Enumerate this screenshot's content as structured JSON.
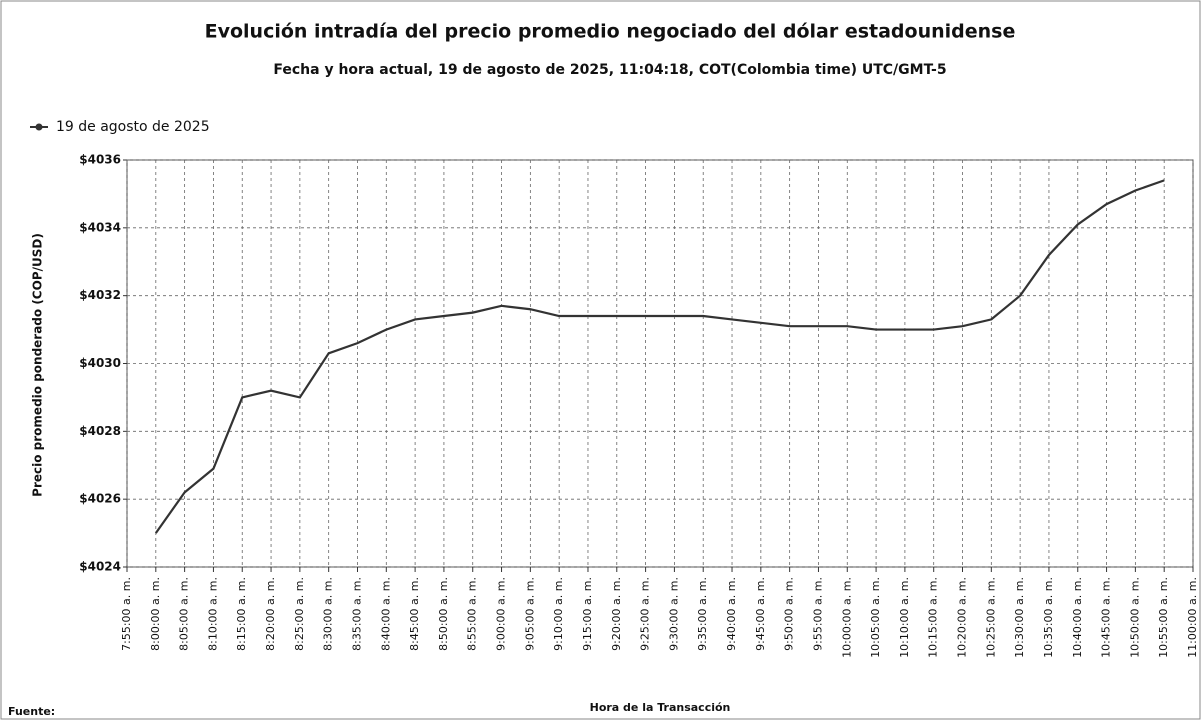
{
  "chart_data": {
    "type": "line",
    "title": "Evolución intradía del precio promedio negociado del dólar estadounidense",
    "subtitle": "Fecha y hora actual, 19 de agosto de 2025, 11:04:18, COT(Colombia time) UTC/GMT-5",
    "y_label": "Precio promedio ponderado (COP/USD)",
    "x_label": "Hora de la Transacción",
    "source": "Fuente:",
    "categories": [
      "7:55:00 a. m.",
      "8:00:00 a. m.",
      "8:05:00 a. m.",
      "8:10:00 a. m.",
      "8:15:00 a. m.",
      "8:20:00 a. m.",
      "8:25:00 a. m.",
      "8:30:00 a. m.",
      "8:35:00 a. m.",
      "8:40:00 a. m.",
      "8:45:00 a. m.",
      "8:50:00 a. m.",
      "8:55:00 a. m.",
      "9:00:00 a. m.",
      "9:05:00 a. m.",
      "9:10:00 a. m.",
      "9:15:00 a. m.",
      "9:20:00 a. m.",
      "9:25:00 a. m.",
      "9:30:00 a. m.",
      "9:35:00 a. m.",
      "9:40:00 a. m.",
      "9:45:00 a. m.",
      "9:50:00 a. m.",
      "9:55:00 a. m.",
      "10:00:00 a. m.",
      "10:05:00 a. m.",
      "10:10:00 a. m.",
      "10:15:00 a. m.",
      "10:20:00 a. m.",
      "10:25:00 a. m.",
      "10:30:00 a. m.",
      "10:35:00 a. m.",
      "10:40:00 a. m.",
      "10:45:00 a. m.",
      "10:50:00 a. m.",
      "10:55:00 a. m.",
      "11:00:00 a. m."
    ],
    "series": [
      {
        "name": "19 de agosto de 2025",
        "color": "#333333",
        "values": [
          null,
          4025.0,
          4026.2,
          4026.9,
          4029.0,
          4029.2,
          4029.0,
          4030.3,
          4030.6,
          4031.0,
          4031.3,
          4031.4,
          4031.5,
          4031.7,
          4031.6,
          4031.4,
          4031.4,
          4031.4,
          4031.4,
          4031.4,
          4031.4,
          4031.3,
          4031.2,
          4031.1,
          4031.1,
          4031.1,
          4031.0,
          4031.0,
          4031.0,
          4031.1,
          4031.3,
          4032.0,
          4033.2,
          4034.1,
          4034.7,
          4035.1,
          4035.4,
          null
        ]
      }
    ],
    "ylim": [
      4024,
      4036
    ],
    "yticks": [
      {
        "value": 4024,
        "label": "$4024"
      },
      {
        "value": 4026,
        "label": "$4026"
      },
      {
        "value": 4028,
        "label": "$4028"
      },
      {
        "value": 4030,
        "label": "$4030"
      },
      {
        "value": 4032,
        "label": "$4032"
      },
      {
        "value": 4034,
        "label": "$4034"
      },
      {
        "value": 4036,
        "label": "$4036"
      }
    ],
    "grid": true,
    "legend": "top-left"
  }
}
